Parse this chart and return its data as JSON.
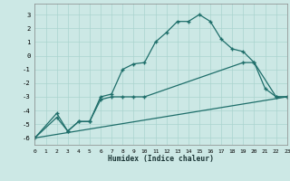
{
  "xlabel": "Humidex (Indice chaleur)",
  "xlim": [
    0,
    23
  ],
  "ylim": [
    -6.5,
    3.8
  ],
  "yticks": [
    3,
    2,
    1,
    0,
    -1,
    -2,
    -3,
    -4,
    -5,
    -6
  ],
  "xticks": [
    0,
    1,
    2,
    3,
    4,
    5,
    6,
    7,
    8,
    9,
    10,
    11,
    12,
    13,
    14,
    15,
    16,
    17,
    18,
    19,
    20,
    21,
    22,
    23
  ],
  "bg_color": "#cce8e5",
  "grid_color": "#aad4cf",
  "line_color": "#1e6e6a",
  "line1_x": [
    0,
    2,
    3,
    4,
    5,
    6,
    7,
    8,
    9,
    10,
    11,
    12,
    13,
    14,
    15,
    16,
    17,
    18,
    19,
    20,
    21,
    22,
    23
  ],
  "line1_y": [
    -6.0,
    -4.2,
    -5.5,
    -4.8,
    -4.8,
    -3.0,
    -2.8,
    -1.0,
    -0.6,
    -0.5,
    1.0,
    1.7,
    2.5,
    2.5,
    3.0,
    2.5,
    1.2,
    0.5,
    0.3,
    -0.5,
    -2.4,
    -3.0,
    -3.0
  ],
  "line2_x": [
    0,
    2,
    3,
    4,
    5,
    6,
    7,
    8,
    9,
    10,
    19,
    20,
    22,
    23
  ],
  "line2_y": [
    -6.0,
    -4.5,
    -5.5,
    -4.8,
    -4.8,
    -3.2,
    -3.0,
    -3.0,
    -3.0,
    -3.0,
    -0.5,
    -0.5,
    -3.0,
    -3.0
  ],
  "line3_x": [
    0,
    23
  ],
  "line3_y": [
    -6.0,
    -3.0
  ]
}
